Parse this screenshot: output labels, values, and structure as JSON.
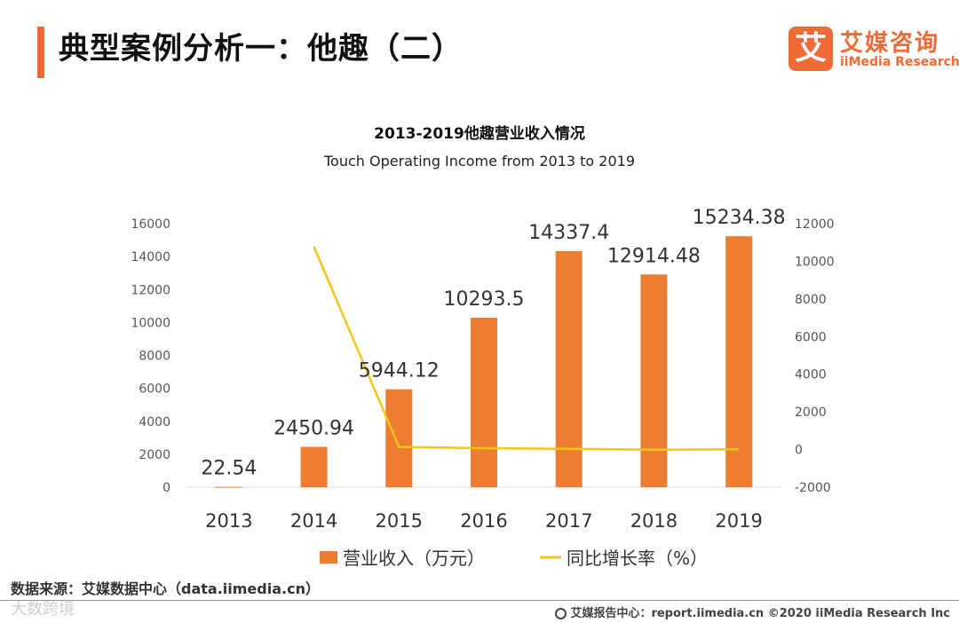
{
  "header": {
    "title": "典型案例分析一：他趣（二）",
    "logo_badge": "艾",
    "logo_name": "艾媒咨询",
    "logo_subtitle": "iiMedia Research"
  },
  "colors": {
    "accent": "#ef6a34",
    "bar": "#ed7d31",
    "line": "#f5c518"
  },
  "chart_data": {
    "type": "bar+line",
    "title": "2013-2019他趣营业收入情况",
    "subtitle": "Touch Operating Income from 2013 to 2019",
    "categories": [
      "2013",
      "2014",
      "2015",
      "2016",
      "2017",
      "2018",
      "2019"
    ],
    "series": [
      {
        "name": "营业收入（万元）",
        "type": "bar",
        "axis": "left",
        "values": [
          22.54,
          2450.94,
          5944.12,
          10293.5,
          14337.4,
          12914.48,
          15234.38
        ],
        "labels": [
          "22.54",
          "2450.94",
          "5944.12",
          "10293.5",
          "14337.4",
          "12914.48",
          "15234.38"
        ]
      },
      {
        "name": "同比增长率（%）",
        "type": "line",
        "axis": "right",
        "values": [
          null,
          10774,
          142.5,
          73.2,
          39.3,
          -9.9,
          18.0
        ]
      }
    ],
    "left_axis": {
      "ylim": [
        0,
        16000
      ],
      "ticks": [
        "0",
        "2000",
        "4000",
        "6000",
        "8000",
        "10000",
        "12000",
        "14000",
        "16000"
      ]
    },
    "right_axis": {
      "ylim": [
        -2000,
        12000
      ],
      "ticks": [
        "-2000",
        "0",
        "2000",
        "4000",
        "6000",
        "8000",
        "10000",
        "12000"
      ]
    },
    "legend": [
      "营业收入（万元）",
      "同比增长率（%）"
    ],
    "legend_position": "bottom"
  },
  "footer": {
    "source": "数据来源：艾媒数据中心（data.iimedia.cn）",
    "watermark": "大数跨境",
    "report": "艾媒报告中心：report.iimedia.cn    ©2020  iiMedia Research  Inc"
  }
}
